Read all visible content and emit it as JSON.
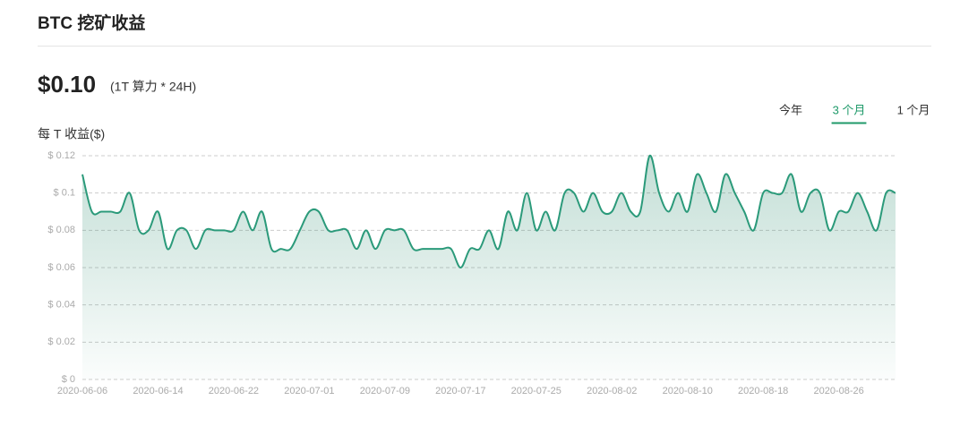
{
  "header": {
    "title": "BTC 挖矿收益"
  },
  "summary": {
    "price": "$0.10",
    "note": "(1T 算力 * 24H)"
  },
  "tabs": {
    "items": [
      "今年",
      "3 个月",
      "1 个月"
    ],
    "active": 1
  },
  "chart_data": {
    "type": "area",
    "y_label": "每 T 收益($)",
    "color": "#2b9a7a",
    "grid": true,
    "categories": [
      "2020-06-06",
      null,
      null,
      null,
      null,
      null,
      null,
      null,
      "2020-06-14",
      null,
      null,
      null,
      null,
      null,
      null,
      null,
      "2020-06-22",
      null,
      null,
      null,
      null,
      null,
      null,
      null,
      "2020-07-01",
      null,
      null,
      null,
      null,
      null,
      null,
      null,
      "2020-07-09",
      null,
      null,
      null,
      null,
      null,
      null,
      null,
      "2020-07-17",
      null,
      null,
      null,
      null,
      null,
      null,
      null,
      "2020-07-25",
      null,
      null,
      null,
      null,
      null,
      null,
      null,
      "2020-08-02",
      null,
      null,
      null,
      null,
      null,
      null,
      null,
      "2020-08-10",
      null,
      null,
      null,
      null,
      null,
      null,
      null,
      "2020-08-18",
      null,
      null,
      null,
      null,
      null,
      null,
      null,
      "2020-08-26",
      null,
      null,
      null,
      null,
      null,
      null
    ],
    "values": [
      0.11,
      0.09,
      0.09,
      0.09,
      0.09,
      0.1,
      0.08,
      0.08,
      0.09,
      0.07,
      0.08,
      0.08,
      0.07,
      0.08,
      0.08,
      0.08,
      0.08,
      0.09,
      0.08,
      0.09,
      0.07,
      0.07,
      0.07,
      0.08,
      0.09,
      0.09,
      0.08,
      0.08,
      0.08,
      0.07,
      0.08,
      0.07,
      0.08,
      0.08,
      0.08,
      0.07,
      0.07,
      0.07,
      0.07,
      0.07,
      0.06,
      0.07,
      0.07,
      0.08,
      0.07,
      0.09,
      0.08,
      0.1,
      0.08,
      0.09,
      0.08,
      0.1,
      0.1,
      0.09,
      0.1,
      0.09,
      0.09,
      0.1,
      0.09,
      0.09,
      0.12,
      0.1,
      0.09,
      0.1,
      0.09,
      0.11,
      0.1,
      0.09,
      0.11,
      0.1,
      0.09,
      0.08,
      0.1,
      0.1,
      0.1,
      0.11,
      0.09,
      0.1,
      0.1,
      0.08,
      0.09,
      0.09,
      0.1,
      0.09,
      0.08,
      0.1,
      0.1
    ],
    "ylim": [
      0,
      0.12
    ],
    "yticks": [
      {
        "value": 0,
        "label": "$ 0"
      },
      {
        "value": 0.02,
        "label": "$ 0.02"
      },
      {
        "value": 0.04,
        "label": "$ 0.04"
      },
      {
        "value": 0.06,
        "label": "$ 0.06"
      },
      {
        "value": 0.08,
        "label": "$ 0.08"
      },
      {
        "value": 0.1,
        "label": "$ 0.1"
      },
      {
        "value": 0.12,
        "label": "$ 0.12"
      }
    ]
  }
}
